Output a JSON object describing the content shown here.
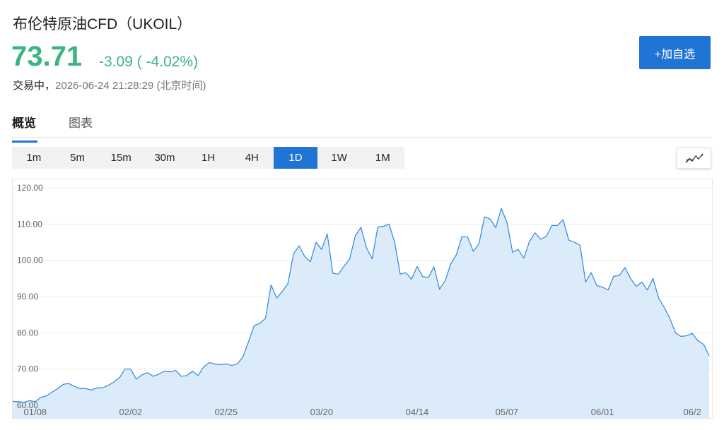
{
  "header": {
    "title": "布伦特原油CFD（UKOIL）",
    "price": "73.71",
    "change": "-3.09",
    "change_pct": "( -4.02%)",
    "status": "交易中，",
    "timestamp": "2026-06-24 21:28:29 (北京时间)",
    "add_button": "+加自选"
  },
  "colors": {
    "up_down": "#3bb57f",
    "accent": "#1f74d6",
    "area_fill": "#dcebfa",
    "line": "#2e86de"
  },
  "tabs": [
    {
      "label": "概览",
      "active": true
    },
    {
      "label": "图表",
      "active": false
    }
  ],
  "periods": [
    {
      "label": "1m",
      "active": false
    },
    {
      "label": "5m",
      "active": false
    },
    {
      "label": "15m",
      "active": false
    },
    {
      "label": "30m",
      "active": false
    },
    {
      "label": "1H",
      "active": false
    },
    {
      "label": "4H",
      "active": false
    },
    {
      "label": "1D",
      "active": true
    },
    {
      "label": "1W",
      "active": false
    },
    {
      "label": "1M",
      "active": false
    }
  ],
  "chart_type_icon": "line-chart-icon",
  "chart_data": {
    "type": "area",
    "ylim": [
      60,
      120
    ],
    "y_ticks": [
      "120.00",
      "110.00",
      "100.00",
      "90.00",
      "80.00",
      "70.00",
      "60.00"
    ],
    "y_tick_values": [
      120,
      110,
      100,
      90,
      80,
      70,
      60
    ],
    "x_tick_labels": [
      "01/08",
      "02/02",
      "02/25",
      "03/20",
      "04/14",
      "05/07",
      "06/01",
      "06/2"
    ],
    "x_tick_index": [
      4,
      21,
      38,
      55,
      72,
      88,
      105,
      121
    ],
    "grid": true,
    "values": [
      61.1,
      61.0,
      60.8,
      61.3,
      61.0,
      62.2,
      62.6,
      63.6,
      64.6,
      65.8,
      66.0,
      65.2,
      64.6,
      64.6,
      64.2,
      64.8,
      64.8,
      65.5,
      66.4,
      67.6,
      70.0,
      70.0,
      67.2,
      68.4,
      69.0,
      68.0,
      68.6,
      69.4,
      69.2,
      69.6,
      68.0,
      68.2,
      69.4,
      68.2,
      70.6,
      71.8,
      71.4,
      71.2,
      71.4,
      71.0,
      71.4,
      73.4,
      77.6,
      82.0,
      82.6,
      84.0,
      93.2,
      89.6,
      91.4,
      93.6,
      101.8,
      104.0,
      101.0,
      99.6,
      105.0,
      103.0,
      107.3,
      96.4,
      96.2,
      98.4,
      100.4,
      106.8,
      109.1,
      103.4,
      100.4,
      109.2,
      109.4,
      110.0,
      105.0,
      96.2,
      96.6,
      94.8,
      98.3,
      95.5,
      95.2,
      98.2,
      92.0,
      94.4,
      99.0,
      101.6,
      106.6,
      106.4,
      102.5,
      104.5,
      112.0,
      111.4,
      109.0,
      114.3,
      110.4,
      102.2,
      103.0,
      100.6,
      105.2,
      107.6,
      105.8,
      106.6,
      109.6,
      109.6,
      111.2,
      105.6,
      105.0,
      104.2,
      94.0,
      96.6,
      93.0,
      92.6,
      91.8,
      95.6,
      95.8,
      98.0,
      95.0,
      92.8,
      94.0,
      91.8,
      95.0,
      89.6,
      87.0,
      84.0,
      80.0,
      79.0,
      79.2,
      79.8,
      77.8,
      76.8,
      73.71
    ]
  }
}
